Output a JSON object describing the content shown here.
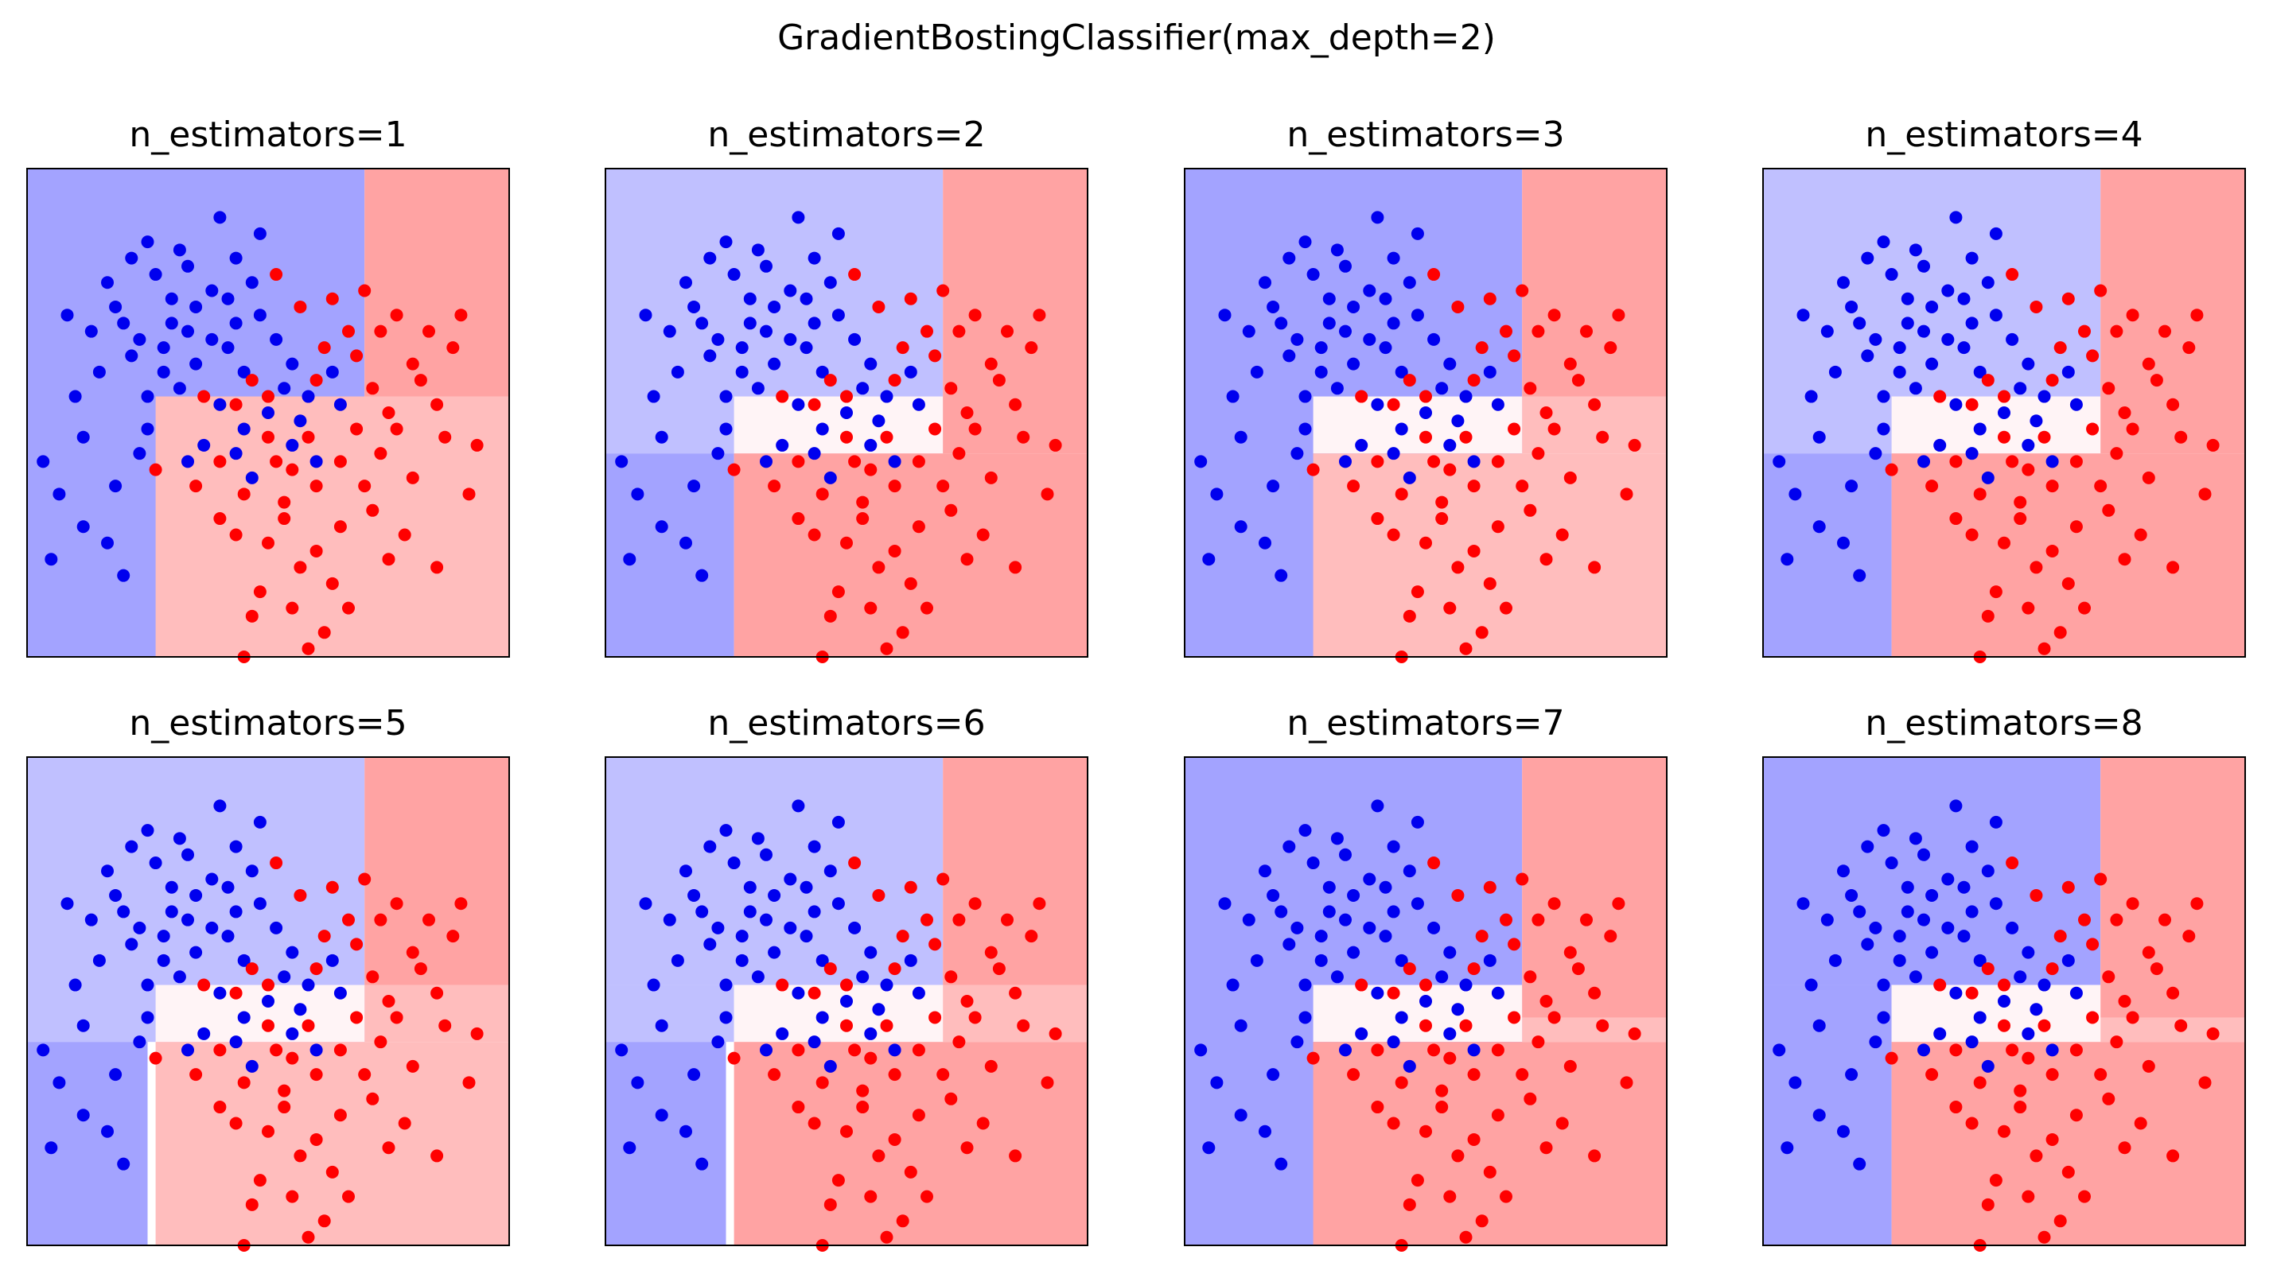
{
  "suptitle": "GradientBostingClassifier(max_depth=2)",
  "colors": {
    "class_blue": "#0000ee",
    "class_red": "#ff0000",
    "region_blue_strong": "#a3a3ff",
    "region_blue_weak": "#c0c0ff",
    "region_red_strong": "#ffa3a3",
    "region_red_weak": "#ffbdbd",
    "region_neutral": "#fff4f6"
  },
  "chart_data": {
    "type": "scatter",
    "xlim": [
      -3,
      3
    ],
    "ylim": [
      -3,
      3
    ],
    "grid": false,
    "ticks": "none",
    "points": {
      "blue": [
        [
          -1.5,
          2.1
        ],
        [
          -1.0,
          1.8
        ],
        [
          -0.4,
          1.9
        ],
        [
          -0.2,
          1.6
        ],
        [
          -0.7,
          1.5
        ],
        [
          -1.2,
          1.4
        ],
        [
          -1.9,
          1.3
        ],
        [
          -2.2,
          1.0
        ],
        [
          -2.5,
          1.2
        ],
        [
          -2.1,
          0.5
        ],
        [
          -1.6,
          0.9
        ],
        [
          -1.3,
          0.8
        ],
        [
          -1.7,
          0.7
        ],
        [
          -0.9,
          0.6
        ],
        [
          -0.5,
          0.8
        ],
        [
          -0.3,
          0.5
        ],
        [
          0.1,
          0.9
        ],
        [
          0.2,
          0.3
        ],
        [
          0.5,
          0.2
        ],
        [
          0.9,
          0.1
        ],
        [
          -0.6,
          0.1
        ],
        [
          -1.1,
          0.3
        ],
        [
          -1.5,
          0.2
        ],
        [
          -0.8,
          -0.4
        ],
        [
          -0.4,
          -0.5
        ],
        [
          0.3,
          -0.4
        ],
        [
          0.6,
          -0.6
        ],
        [
          -2.6,
          -1.0
        ],
        [
          -2.3,
          -1.4
        ],
        [
          -2.0,
          -1.6
        ],
        [
          -2.8,
          -0.6
        ],
        [
          -1.8,
          -2.0
        ],
        [
          -1.2,
          1.1
        ],
        [
          -0.1,
          1.2
        ],
        [
          -1.4,
          1.7
        ],
        [
          -2.0,
          1.6
        ],
        [
          -1.7,
          1.9
        ],
        [
          -0.9,
          1.3
        ],
        [
          -0.4,
          1.1
        ],
        [
          0.3,
          0.6
        ],
        [
          0.0,
          0.0
        ],
        [
          -0.3,
          -0.2
        ],
        [
          -1.0,
          -0.6
        ],
        [
          -1.6,
          -0.5
        ],
        [
          -2.3,
          -0.3
        ],
        [
          -0.6,
          2.4
        ],
        [
          -1.1,
          2.0
        ],
        [
          -1.8,
          1.1
        ],
        [
          -1.3,
          0.5
        ],
        [
          -0.7,
          0.9
        ],
        [
          0.4,
          -0.1
        ],
        [
          0.8,
          0.5
        ],
        [
          -0.2,
          -0.8
        ],
        [
          -1.9,
          -0.9
        ],
        [
          -2.7,
          -1.8
        ],
        [
          -1.5,
          -0.2
        ],
        [
          -0.5,
          1.4
        ],
        [
          -0.1,
          2.2
        ],
        [
          -2.4,
          0.2
        ],
        [
          -1.0,
          1.0
        ]
      ],
      "red": [
        [
          1.2,
          1.5
        ],
        [
          1.6,
          1.2
        ],
        [
          2.0,
          1.0
        ],
        [
          2.3,
          0.8
        ],
        [
          1.9,
          0.4
        ],
        [
          1.5,
          0.0
        ],
        [
          1.1,
          -0.2
        ],
        [
          1.4,
          -0.5
        ],
        [
          1.8,
          -0.8
        ],
        [
          2.2,
          -0.3
        ],
        [
          2.6,
          -0.4
        ],
        [
          0.6,
          -0.9
        ],
        [
          0.2,
          -1.1
        ],
        [
          -0.3,
          -1.0
        ],
        [
          -0.6,
          -1.3
        ],
        [
          0.0,
          -1.6
        ],
        [
          0.4,
          -1.9
        ],
        [
          0.8,
          -2.1
        ],
        [
          0.3,
          -2.4
        ],
        [
          0.7,
          -2.7
        ],
        [
          -0.1,
          -2.2
        ],
        [
          0.9,
          -1.4
        ],
        [
          1.3,
          -1.2
        ],
        [
          1.7,
          -1.5
        ],
        [
          2.1,
          -1.9
        ],
        [
          0.5,
          -0.3
        ],
        [
          0.1,
          -0.6
        ],
        [
          -0.4,
          0.1
        ],
        [
          -0.8,
          0.2
        ],
        [
          -0.2,
          0.4
        ],
        [
          0.7,
          0.8
        ],
        [
          1.0,
          1.0
        ],
        [
          0.4,
          1.3
        ],
        [
          0.1,
          1.7
        ],
        [
          -1.4,
          -0.7
        ],
        [
          -0.9,
          -0.9
        ],
        [
          -0.4,
          -1.5
        ],
        [
          0.6,
          -1.7
        ],
        [
          1.2,
          -0.9
        ],
        [
          1.6,
          -0.2
        ],
        [
          2.4,
          1.2
        ],
        [
          2.1,
          0.1
        ],
        [
          1.8,
          0.6
        ],
        [
          1.3,
          0.3
        ],
        [
          0.9,
          -0.6
        ],
        [
          0.2,
          -1.3
        ],
        [
          -0.2,
          -2.5
        ],
        [
          0.5,
          -2.9
        ],
        [
          1.0,
          -2.4
        ],
        [
          1.5,
          -1.8
        ],
        [
          0.6,
          0.4
        ],
        [
          0.0,
          0.2
        ],
        [
          -0.6,
          -0.6
        ],
        [
          1.1,
          0.7
        ],
        [
          0.8,
          1.4
        ],
        [
          2.5,
          -1.0
        ],
        [
          -0.3,
          -3.0
        ],
        [
          0.3,
          -0.7
        ],
        [
          1.4,
          1.0
        ],
        [
          0.0,
          -0.3
        ]
      ]
    },
    "panels": [
      {
        "title": "n_estimators=1",
        "regions": [
          {
            "x0": -3,
            "x1": 1.2,
            "y0": -3,
            "y1": 3,
            "fill": "region_blue_strong"
          },
          {
            "x0": -1.4,
            "x1": 3,
            "y0": -3,
            "y1": 0.2,
            "fill": "region_red_weak"
          },
          {
            "x0": 1.2,
            "x1": 3,
            "y0": 0.2,
            "y1": 3,
            "fill": "region_red_strong"
          }
        ]
      },
      {
        "title": "n_estimators=2",
        "regions": [
          {
            "x0": -3,
            "x1": 1.2,
            "y0": -0.5,
            "y1": 3,
            "fill": "region_blue_weak"
          },
          {
            "x0": -3,
            "x1": -1.4,
            "y0": -3,
            "y1": -0.5,
            "fill": "region_blue_strong"
          },
          {
            "x0": -1.4,
            "x1": 1.2,
            "y0": -0.5,
            "y1": 0.2,
            "fill": "region_neutral"
          },
          {
            "x0": -1.4,
            "x1": 3,
            "y0": -3,
            "y1": -0.5,
            "fill": "region_red_strong"
          },
          {
            "x0": 1.2,
            "x1": 3,
            "y0": -0.5,
            "y1": 3,
            "fill": "region_red_strong"
          }
        ]
      },
      {
        "title": "n_estimators=3",
        "regions": [
          {
            "x0": -3,
            "x1": 1.2,
            "y0": -3,
            "y1": 3,
            "fill": "region_blue_strong"
          },
          {
            "x0": -1.4,
            "x1": 1.2,
            "y0": -0.5,
            "y1": 0.2,
            "fill": "region_neutral"
          },
          {
            "x0": -1.4,
            "x1": 3,
            "y0": -3,
            "y1": -0.5,
            "fill": "region_red_weak"
          },
          {
            "x0": 1.2,
            "x1": 3,
            "y0": -0.5,
            "y1": 0.2,
            "fill": "region_red_weak"
          },
          {
            "x0": 1.2,
            "x1": 3,
            "y0": 0.2,
            "y1": 3,
            "fill": "region_red_strong"
          }
        ]
      },
      {
        "title": "n_estimators=4",
        "regions": [
          {
            "x0": -3,
            "x1": 1.2,
            "y0": -0.5,
            "y1": 3,
            "fill": "region_blue_weak"
          },
          {
            "x0": -3,
            "x1": -1.4,
            "y0": -3,
            "y1": -0.5,
            "fill": "region_blue_strong"
          },
          {
            "x0": -1.4,
            "x1": 1.2,
            "y0": -0.5,
            "y1": 0.2,
            "fill": "region_neutral"
          },
          {
            "x0": -1.4,
            "x1": 3,
            "y0": -3,
            "y1": -0.5,
            "fill": "region_red_strong"
          },
          {
            "x0": 1.2,
            "x1": 3,
            "y0": -0.5,
            "y1": 3,
            "fill": "region_red_strong"
          }
        ]
      },
      {
        "title": "n_estimators=5",
        "regions": [
          {
            "x0": -3,
            "x1": 1.2,
            "y0": -0.5,
            "y1": 3,
            "fill": "region_blue_weak"
          },
          {
            "x0": -3,
            "x1": -1.5,
            "y0": -3,
            "y1": -0.5,
            "fill": "region_blue_strong"
          },
          {
            "x0": -1.4,
            "x1": 1.2,
            "y0": -0.5,
            "y1": 0.2,
            "fill": "region_neutral"
          },
          {
            "x0": -1.4,
            "x1": 3,
            "y0": -3,
            "y1": -0.5,
            "fill": "region_red_weak"
          },
          {
            "x0": 1.2,
            "x1": 3,
            "y0": -0.5,
            "y1": 0.2,
            "fill": "region_red_weak"
          },
          {
            "x0": 1.2,
            "x1": 3,
            "y0": 0.2,
            "y1": 3,
            "fill": "region_red_strong"
          }
        ]
      },
      {
        "title": "n_estimators=6",
        "regions": [
          {
            "x0": -3,
            "x1": 1.2,
            "y0": 0.2,
            "y1": 3,
            "fill": "region_blue_weak"
          },
          {
            "x0": -3,
            "x1": -1.4,
            "y0": -0.5,
            "y1": 0.2,
            "fill": "region_blue_weak"
          },
          {
            "x0": -3,
            "x1": -1.5,
            "y0": -3,
            "y1": -0.5,
            "fill": "region_blue_strong"
          },
          {
            "x0": -1.4,
            "x1": 1.2,
            "y0": -0.5,
            "y1": 0.2,
            "fill": "region_neutral"
          },
          {
            "x0": -1.4,
            "x1": 3,
            "y0": -3,
            "y1": -0.5,
            "fill": "region_red_strong"
          },
          {
            "x0": 1.2,
            "x1": 3,
            "y0": -0.5,
            "y1": 0.2,
            "fill": "region_red_weak"
          },
          {
            "x0": 1.2,
            "x1": 3,
            "y0": 0.2,
            "y1": 3,
            "fill": "region_red_strong"
          }
        ]
      },
      {
        "title": "n_estimators=7",
        "regions": [
          {
            "x0": -3,
            "x1": 1.2,
            "y0": -3,
            "y1": 3,
            "fill": "region_blue_strong"
          },
          {
            "x0": -1.4,
            "x1": 1.2,
            "y0": -0.5,
            "y1": 0.2,
            "fill": "region_neutral"
          },
          {
            "x0": -1.4,
            "x1": 3,
            "y0": -3,
            "y1": -0.5,
            "fill": "region_red_strong"
          },
          {
            "x0": 1.2,
            "x1": 3,
            "y0": -0.5,
            "y1": -0.2,
            "fill": "region_red_weak"
          },
          {
            "x0": 1.2,
            "x1": 3,
            "y0": -0.2,
            "y1": 3,
            "fill": "region_red_strong"
          }
        ]
      },
      {
        "title": "n_estimators=8",
        "regions": [
          {
            "x0": -3,
            "x1": 1.2,
            "y0": 0.2,
            "y1": 3,
            "fill": "region_blue_strong"
          },
          {
            "x0": -3,
            "x1": -1.4,
            "y0": -3,
            "y1": 0.2,
            "fill": "region_blue_strong"
          },
          {
            "x0": -1.4,
            "x1": 1.2,
            "y0": -0.5,
            "y1": 0.2,
            "fill": "region_neutral"
          },
          {
            "x0": -1.4,
            "x1": 3,
            "y0": -3,
            "y1": -0.5,
            "fill": "region_red_strong"
          },
          {
            "x0": 1.2,
            "x1": 3,
            "y0": -0.5,
            "y1": -0.2,
            "fill": "region_red_weak"
          },
          {
            "x0": 1.2,
            "x1": 3,
            "y0": -0.2,
            "y1": 3,
            "fill": "region_red_strong"
          }
        ]
      }
    ]
  }
}
